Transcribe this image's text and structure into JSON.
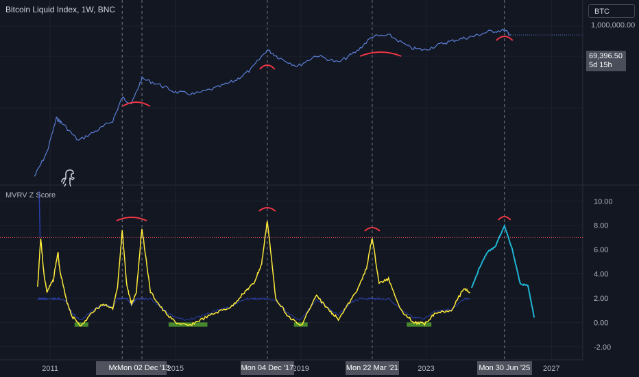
{
  "header": {
    "title": "Bitcoin Liquid Index, 1W, BNC",
    "symbol": "BTC",
    "last_price": "69,396.50",
    "countdown": "5d 15h"
  },
  "indicator": {
    "title": "MVRV Z Score"
  },
  "colors": {
    "background": "#131722",
    "price_line": "#5b7fd6",
    "mvrv_line": "#ffeb3b",
    "realized_line": "#2a3fa8",
    "projection_line": "#1fb5d5",
    "top_arc": "#f23645",
    "threshold_line": "#e0505a",
    "undervalued_fill": "#55a630"
  },
  "price_axis": {
    "labels": [
      "1,000,000.00"
    ]
  },
  "chart_data": [
    {
      "type": "line",
      "title": "Bitcoin Liquid Index, 1W, BNC",
      "scale": "log",
      "x": [
        2010.5,
        2010.9,
        2011.2,
        2011.4,
        2011.9,
        2012.5,
        2013.0,
        2013.3,
        2013.6,
        2013.93,
        2014.5,
        2015.0,
        2015.6,
        2016.3,
        2016.9,
        2017.4,
        2017.93,
        2018.3,
        2018.9,
        2019.5,
        2020.2,
        2020.8,
        2021.28,
        2021.85,
        2022.5,
        2022.95,
        2023.5,
        2024.0,
        2024.5,
        2025.0,
        2025.5,
        2025.7
      ],
      "values": [
        0.1,
        1,
        25,
        15,
        3,
        8,
        20,
        180,
        100,
        1100,
        600,
        300,
        250,
        450,
        900,
        2500,
        17000,
        8000,
        3500,
        10000,
        5000,
        15000,
        60000,
        65000,
        20000,
        16500,
        30000,
        45000,
        60000,
        95000,
        108000,
        69396.5
      ],
      "series": [
        {
          "name": "BTC",
          "values": [
            0.1,
            1,
            25,
            15,
            3,
            8,
            20,
            180,
            100,
            1100,
            600,
            300,
            250,
            450,
            900,
            2500,
            17000,
            8000,
            3500,
            10000,
            5000,
            15000,
            60000,
            65000,
            20000,
            16500,
            30000,
            45000,
            60000,
            95000,
            108000,
            69396.5
          ]
        }
      ],
      "ylim_log": [
        0.05,
        1000000
      ],
      "last_value": 69396.5,
      "annotations": [
        "top arc 2013.93",
        "top arc 2017.93",
        "top arc 2021.28",
        "top arc 2025.5"
      ]
    },
    {
      "type": "line",
      "title": "MVRV Z Score",
      "x": [
        2010.6,
        2010.7,
        2010.8,
        2010.9,
        2011.1,
        2011.25,
        2011.3,
        2011.5,
        2011.7,
        2012.0,
        2012.4,
        2012.7,
        2013.0,
        2013.15,
        2013.3,
        2013.45,
        2013.6,
        2013.75,
        2013.93,
        2014.2,
        2014.6,
        2015.0,
        2015.4,
        2015.8,
        2016.3,
        2016.8,
        2017.2,
        2017.5,
        2017.75,
        2017.93,
        2018.2,
        2018.6,
        2019.0,
        2019.5,
        2019.9,
        2020.2,
        2020.6,
        2020.9,
        2021.1,
        2021.28,
        2021.5,
        2021.8,
        2022.2,
        2022.6,
        2022.95,
        2023.3,
        2023.8,
        2024.2,
        2024.4
      ],
      "values": [
        2.9,
        7.0,
        4.0,
        2.5,
        3.5,
        5.8,
        4.5,
        2.0,
        0.5,
        -0.3,
        1.0,
        1.5,
        1.2,
        2.8,
        7.5,
        3.0,
        1.5,
        2.5,
        7.8,
        2.5,
        1.0,
        0.0,
        -0.3,
        0.2,
        0.8,
        1.3,
        2.5,
        3.2,
        4.8,
        8.4,
        2.0,
        0.5,
        -0.3,
        2.2,
        1.0,
        0.3,
        1.8,
        3.2,
        4.5,
        7.0,
        3.2,
        3.6,
        1.0,
        0.0,
        -0.1,
        0.8,
        1.0,
        2.8,
        2.5
      ],
      "series": [
        {
          "name": "MVRV Z Score",
          "values": [
            2.9,
            7.0,
            4.0,
            2.5,
            3.5,
            5.8,
            4.5,
            2.0,
            0.5,
            -0.3,
            1.0,
            1.5,
            1.2,
            2.8,
            7.5,
            3.0,
            1.5,
            2.5,
            7.8,
            2.5,
            1.0,
            0.0,
            -0.3,
            0.2,
            0.8,
            1.3,
            2.5,
            3.2,
            4.8,
            8.4,
            2.0,
            0.5,
            -0.3,
            2.2,
            1.0,
            0.3,
            1.8,
            3.2,
            4.5,
            7.0,
            3.2,
            3.6,
            1.0,
            0.0,
            -0.1,
            0.8,
            1.0,
            2.8,
            2.5
          ]
        },
        {
          "name": "Projection",
          "x": [
            2024.45,
            2024.7,
            2024.95,
            2025.2,
            2025.5,
            2025.75,
            2026.0,
            2026.25,
            2026.45
          ],
          "values": [
            2.8,
            4.5,
            5.8,
            6.2,
            8.0,
            6.0,
            3.2,
            3.0,
            0.4
          ]
        }
      ],
      "threshold": 7.0,
      "ylim": [
        -2.8,
        11.2
      ],
      "yticks": [
        10.0,
        8.0,
        6.0,
        4.0,
        2.0,
        0.0,
        -2.0
      ],
      "xticks": [
        {
          "label": "2011",
          "x": 2011.0
        },
        {
          "label": "2015",
          "x": 2015.0
        },
        {
          "label": "2019",
          "x": 2019.0
        },
        {
          "label": "2023",
          "x": 2023.0
        },
        {
          "label": "2027",
          "x": 2027.0
        }
      ],
      "vlines": [
        2013.3,
        2013.93,
        2017.93,
        2021.28,
        2025.5
      ],
      "date_tags": [
        {
          "label": "Mon",
          "x": 2013.3
        },
        {
          "label": "Mon 02 Dec '13",
          "x": 2013.93
        },
        {
          "label": "Mon 04 Dec '17",
          "x": 2017.93
        },
        {
          "label": "Mon 22 Mar '21",
          "x": 2021.28
        },
        {
          "label": "Mon 30 Jun '25",
          "x": 2025.5
        }
      ]
    }
  ]
}
